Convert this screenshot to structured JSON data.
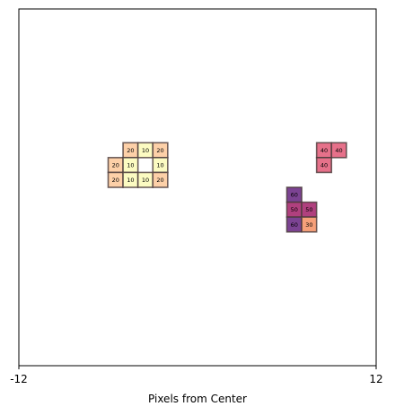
{
  "chart_data": {
    "type": "heatmap",
    "title": "",
    "xlabel": "Pixels from Center",
    "ylabel": "",
    "xlim": [
      -12,
      12
    ],
    "ylim": [
      -12,
      12
    ],
    "x_ticks": [
      "-12",
      "12"
    ],
    "y_ticks": [],
    "grid": false,
    "colormap": "magma",
    "cells": [
      {
        "x": -5,
        "y": 2,
        "value": 20,
        "color": "#fdd0a8"
      },
      {
        "x": -4,
        "y": 2,
        "value": 10,
        "color": "#fcfbc2"
      },
      {
        "x": -3,
        "y": 2,
        "value": 20,
        "color": "#fdd0a8"
      },
      {
        "x": -6,
        "y": 1,
        "value": 20,
        "color": "#fdd0a8"
      },
      {
        "x": -5,
        "y": 1,
        "value": 10,
        "color": "#fcfbc2"
      },
      {
        "x": -3,
        "y": 1,
        "value": 10,
        "color": "#fcfbc2"
      },
      {
        "x": -6,
        "y": 0,
        "value": 20,
        "color": "#fdd0a8"
      },
      {
        "x": -5,
        "y": 0,
        "value": 10,
        "color": "#fcfbc2"
      },
      {
        "x": -4,
        "y": 0,
        "value": 10,
        "color": "#fcfbc2"
      },
      {
        "x": -3,
        "y": 0,
        "value": 20,
        "color": "#fdd0a8"
      },
      {
        "x": 8,
        "y": 2,
        "value": 40,
        "color": "#e6718a"
      },
      {
        "x": 9,
        "y": 2,
        "value": 40,
        "color": "#e6718a"
      },
      {
        "x": 8,
        "y": 1,
        "value": 40,
        "color": "#e6718a"
      },
      {
        "x": 6,
        "y": -1,
        "value": 60,
        "color": "#7c4393"
      },
      {
        "x": 6,
        "y": -2,
        "value": 50,
        "color": "#b0407e"
      },
      {
        "x": 7,
        "y": -2,
        "value": 50,
        "color": "#b0407e"
      },
      {
        "x": 6,
        "y": -3,
        "value": 60,
        "color": "#7c4393"
      },
      {
        "x": 7,
        "y": -3,
        "value": 30,
        "color": "#f6a07a"
      }
    ]
  }
}
